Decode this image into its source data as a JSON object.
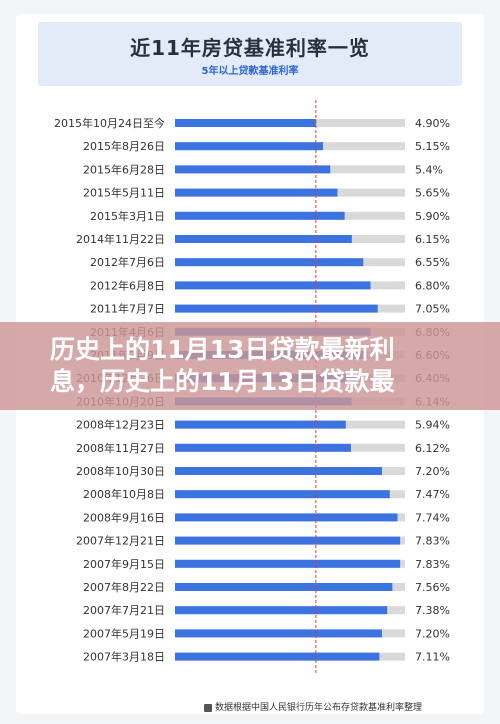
{
  "header": {
    "title": "近11年房贷基准利率一览",
    "subtitle": "5年以上贷款基准利率"
  },
  "overlay": {
    "line1": "历史上的11月13日贷款最新利",
    "line2": "息，历史上的11月13日贷款最"
  },
  "footnote": "数据根据中国人民银行历年公布存贷款基准利率整理",
  "colors": {
    "bar": "#3b73e0",
    "track": "#d9d9d9",
    "reference_line": "#e03c31"
  },
  "chart_data": {
    "type": "bar",
    "orientation": "horizontal",
    "title": "近11年房贷基准利率一览",
    "subtitle": "5年以上贷款基准利率",
    "xlim": [
      0,
      8
    ],
    "reference_value": 4.9,
    "categories": [
      "2015年10月24日至今",
      "2015年8月26日",
      "2015年6月28日",
      "2015年5月11日",
      "2015年3月1日",
      "2014年11月22日",
      "2012年7月6日",
      "2012年6月8日",
      "2011年7月7日",
      "2011年4月6日",
      "2011年2月9日",
      "2010年12月26日",
      "2010年10月20日",
      "2008年12月23日",
      "2008年11月27日",
      "2008年10月30日",
      "2008年10月8日",
      "2008年9月16日",
      "2007年12月21日",
      "2007年9月15日",
      "2007年8月22日",
      "2007年7月21日",
      "2007年5月19日",
      "2007年3月18日"
    ],
    "values": [
      4.9,
      5.15,
      5.4,
      5.65,
      5.9,
      6.15,
      6.55,
      6.8,
      7.05,
      6.8,
      6.6,
      6.4,
      6.14,
      5.94,
      6.12,
      7.2,
      7.47,
      7.74,
      7.83,
      7.83,
      7.56,
      7.38,
      7.2,
      7.11
    ],
    "value_labels": [
      "4.90%",
      "5.15%",
      "5.4%",
      "5.65%",
      "5.90%",
      "6.15%",
      "6.55%",
      "6.80%",
      "7.05%",
      "6.80%",
      "6.60%",
      "6.40%",
      "6.14%",
      "5.94%",
      "6.12%",
      "7.20%",
      "7.47%",
      "7.74%",
      "7.83%",
      "7.83%",
      "7.56%",
      "7.38%",
      "7.20%",
      "7.11%"
    ]
  }
}
